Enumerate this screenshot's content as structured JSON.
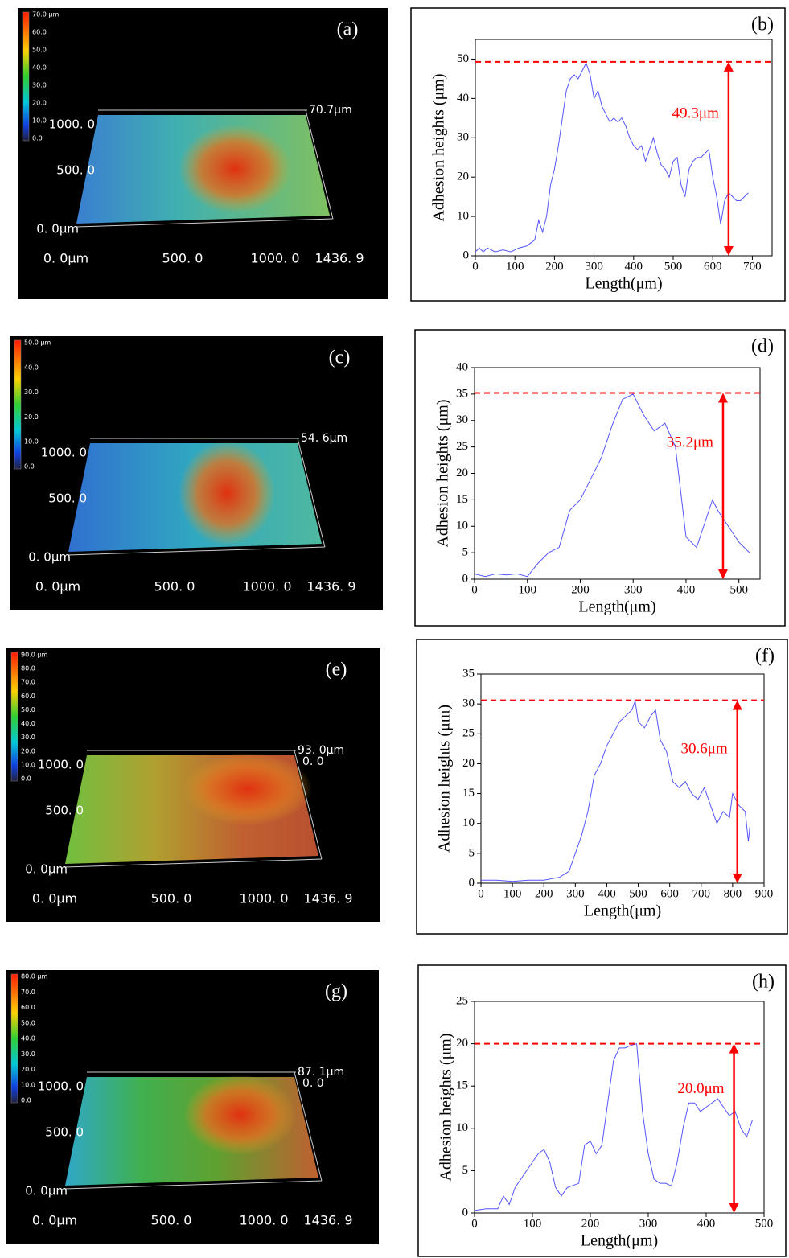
{
  "surface_images": [
    {
      "panel_label": "(a)",
      "colorbar_labels": [
        "70.0 μm",
        "60.0",
        "50.0",
        "40.0",
        "30.0",
        "20.0",
        "10.0",
        "0.0"
      ],
      "y_labels": [
        "1000. 0",
        "500. 0",
        "0. 0μm"
      ],
      "x_labels": [
        "0. 0μm",
        "500. 0",
        "1000. 0",
        "1436. 9"
      ],
      "z_labels": [
        "70.7μm"
      ]
    },
    {
      "panel_label": "(c)",
      "colorbar_labels": [
        "50.0 μm",
        "40.0",
        "30.0",
        "20.0",
        "10.0",
        "0.0"
      ],
      "y_labels": [
        "1000. 0",
        "500. 0",
        "0. 0μm"
      ],
      "x_labels": [
        "0. 0μm",
        "500. 0",
        "1000. 0",
        "1436. 9"
      ],
      "z_labels": [
        "54. 6μm"
      ]
    },
    {
      "panel_label": "(e)",
      "colorbar_labels": [
        "90.0 μm",
        "80.0",
        "70.0",
        "60.0",
        "50.0",
        "40.0",
        "30.0",
        "20.0",
        "10.0",
        "0.0"
      ],
      "y_labels": [
        "1000. 0",
        "500. 0",
        "0. 0μm"
      ],
      "x_labels": [
        "0. 0μm",
        "500. 0",
        "1000. 0",
        "1436. 9"
      ],
      "z_labels": [
        "93. 0μm",
        "0. 0"
      ]
    },
    {
      "panel_label": "(g)",
      "colorbar_labels": [
        "80.0 μm",
        "70.0",
        "60.0",
        "50.0",
        "40.0",
        "30.0",
        "20.0",
        "10.0",
        "0.0"
      ],
      "y_labels": [
        "1000. 0",
        "500. 0",
        "0. 0μm"
      ],
      "x_labels": [
        "0. 0μm",
        "500. 0",
        "1000. 0",
        "1436. 9"
      ],
      "z_labels": [
        "87. 1μm",
        "0. 0"
      ]
    }
  ],
  "chart_data": [
    {
      "type": "line",
      "panel_label": "(b)",
      "x_label": "Length(μm)",
      "y_label": "Adhesion heights (μm)",
      "color": "#5555ff",
      "x": [
        0,
        10,
        20,
        30,
        50,
        70,
        90,
        110,
        130,
        150,
        160,
        170,
        180,
        190,
        200,
        210,
        220,
        230,
        240,
        250,
        260,
        270,
        280,
        290,
        300,
        310,
        320,
        330,
        340,
        350,
        360,
        370,
        380,
        390,
        400,
        410,
        420,
        430,
        440,
        450,
        460,
        470,
        480,
        490,
        500,
        510,
        520,
        530,
        540,
        550,
        560,
        570,
        580,
        590,
        600,
        610,
        620,
        630,
        640,
        650,
        660,
        670,
        680,
        690
      ],
      "values": [
        1,
        2,
        1,
        2,
        1,
        1.5,
        1,
        2,
        2.5,
        4,
        9,
        6,
        10,
        18,
        22,
        28,
        35,
        42,
        45,
        46,
        45,
        47,
        49,
        46,
        40,
        42,
        38,
        36,
        34,
        35,
        34,
        35,
        33,
        30,
        28,
        27,
        28,
        24,
        27,
        30,
        26,
        23,
        22,
        20,
        24,
        25,
        18,
        15,
        22,
        24,
        25,
        25,
        26,
        27,
        20,
        15,
        8,
        14,
        16,
        15,
        14,
        14,
        15,
        16
      ],
      "xlim": [
        0,
        750
      ],
      "xticks": [
        0,
        100,
        200,
        300,
        400,
        500,
        600,
        700
      ],
      "ylim": [
        0,
        55
      ],
      "yticks": [
        0,
        10,
        20,
        30,
        40,
        50
      ],
      "reference_line": {
        "value": 49.3,
        "label": "49.3μm",
        "x": 640,
        "color": "#ff0000"
      }
    },
    {
      "type": "line",
      "panel_label": "(d)",
      "x_label": "Length(μm)",
      "y_label": "Adhesion heights (μm)",
      "color": "#5555ff",
      "x": [
        0,
        20,
        40,
        60,
        80,
        100,
        120,
        140,
        160,
        180,
        200,
        220,
        240,
        260,
        280,
        300,
        320,
        340,
        360,
        380,
        400,
        420,
        440,
        450,
        460,
        480,
        500,
        520
      ],
      "values": [
        1,
        0.5,
        1,
        0.8,
        1,
        0.5,
        3,
        5,
        6,
        13,
        15,
        19,
        23,
        29,
        34,
        35,
        31,
        28,
        29.5,
        25,
        8,
        6,
        12,
        15,
        13,
        10,
        7,
        5
      ],
      "xlim": [
        0,
        540
      ],
      "xticks": [
        0,
        100,
        200,
        300,
        400,
        500
      ],
      "ylim": [
        0,
        40
      ],
      "yticks": [
        0,
        5,
        10,
        15,
        20,
        25,
        30,
        35,
        40
      ],
      "reference_line": {
        "value": 35.2,
        "label": "35.2μm",
        "x": 470,
        "color": "#ff0000"
      }
    },
    {
      "type": "line",
      "panel_label": "(f)",
      "x_label": "Length(μm)",
      "y_label": "Adhesion heights (μm)",
      "color": "#5555ff",
      "x": [
        0,
        50,
        100,
        150,
        200,
        250,
        280,
        300,
        320,
        340,
        360,
        380,
        400,
        420,
        440,
        460,
        480,
        490,
        500,
        520,
        540,
        555,
        570,
        590,
        610,
        630,
        650,
        670,
        690,
        710,
        730,
        750,
        770,
        790,
        800,
        820,
        840,
        850,
        855
      ],
      "values": [
        0.5,
        0.5,
        0.3,
        0.5,
        0.5,
        1,
        2,
        5,
        8,
        12,
        18,
        20,
        23,
        25,
        27,
        28,
        29,
        30.5,
        27,
        26,
        28,
        29,
        24,
        22,
        17,
        16,
        17,
        15,
        14,
        16,
        13,
        10,
        12,
        11,
        15,
        13,
        12,
        7,
        9.5
      ],
      "xlim": [
        0,
        900
      ],
      "xticks": [
        0,
        100,
        200,
        300,
        400,
        500,
        600,
        700,
        800,
        900
      ],
      "ylim": [
        0,
        35
      ],
      "yticks": [
        0,
        5,
        10,
        15,
        20,
        25,
        30,
        35
      ],
      "reference_line": {
        "value": 30.6,
        "label": "30.6μm",
        "x": 815,
        "color": "#ff0000"
      }
    },
    {
      "type": "line",
      "panel_label": "(h)",
      "x_label": "Length(μm)",
      "y_label": "Adhesion heights (μm)",
      "color": "#5555ff",
      "x": [
        0,
        20,
        40,
        50,
        60,
        70,
        90,
        100,
        110,
        120,
        130,
        140,
        150,
        160,
        180,
        190,
        200,
        210,
        220,
        240,
        250,
        260,
        270,
        280,
        290,
        300,
        310,
        320,
        330,
        340,
        350,
        360,
        370,
        380,
        390,
        400,
        420,
        440,
        450,
        460,
        470,
        480
      ],
      "values": [
        0.3,
        0.5,
        0.5,
        2,
        1,
        3,
        5,
        6,
        7,
        7.5,
        6,
        3,
        2,
        3,
        3.5,
        8,
        8.5,
        7,
        8,
        18,
        19.5,
        19.5,
        19.8,
        20,
        12,
        7,
        4,
        3.5,
        3.5,
        3.2,
        6,
        10,
        13,
        13,
        12,
        12.5,
        13.5,
        11.5,
        12,
        10,
        9,
        11
      ],
      "xlim": [
        0,
        500
      ],
      "xticks": [
        0,
        100,
        200,
        300,
        400,
        500
      ],
      "ylim": [
        0,
        25
      ],
      "yticks": [
        0,
        5,
        10,
        15,
        20,
        25
      ],
      "reference_line": {
        "value": 20.0,
        "label": "20.0μm",
        "x": 448,
        "color": "#ff0000"
      }
    }
  ]
}
